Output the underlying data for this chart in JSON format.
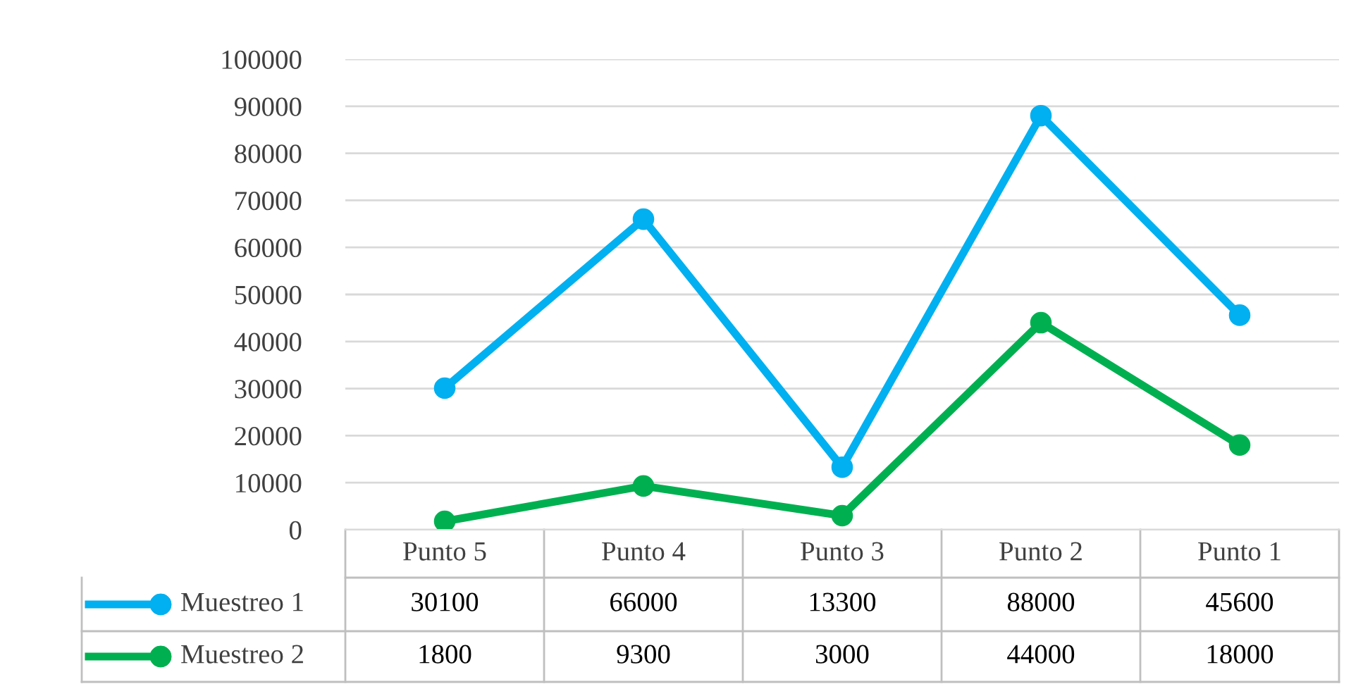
{
  "chart_data": {
    "type": "line",
    "categories": [
      "Punto 5",
      "Punto 4",
      "Punto 3",
      "Punto 2",
      "Punto 1"
    ],
    "series": [
      {
        "name": "Muestreo 1",
        "color": "#00b0f0",
        "values": [
          30100,
          66000,
          13300,
          88000,
          45600
        ]
      },
      {
        "name": "Muestreo 2",
        "color": "#00b050",
        "values": [
          1800,
          9300,
          3000,
          44000,
          18000
        ]
      }
    ],
    "ylim": [
      0,
      100000
    ],
    "yticks": [
      0,
      10000,
      20000,
      30000,
      40000,
      50000,
      60000,
      70000,
      80000,
      90000,
      100000
    ],
    "grid": "y",
    "marker": "circle",
    "line_style": "solid",
    "data_labels": true,
    "legend": "bottom left"
  }
}
